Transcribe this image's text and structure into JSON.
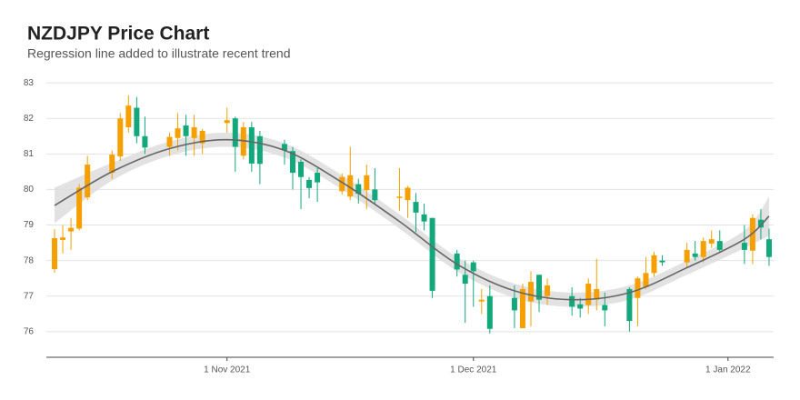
{
  "chart_data": {
    "type": "candlestick",
    "title": "NZDJPY Price Chart",
    "subtitle": "Regression line added to illustrate recent trend",
    "up_color": "#f5a000",
    "down_color": "#12a87b",
    "grid": true,
    "x": [
      "2021-10-11",
      "2021-10-12",
      "2021-10-13",
      "2021-10-14",
      "2021-10-15",
      "2021-10-18",
      "2021-10-19",
      "2021-10-20",
      "2021-10-21",
      "2021-10-22",
      "2021-10-25",
      "2021-10-26",
      "2021-10-27",
      "2021-10-28",
      "2021-10-29",
      "2021-11-01",
      "2021-11-02",
      "2021-11-03",
      "2021-11-04",
      "2021-11-05",
      "2021-11-08",
      "2021-11-09",
      "2021-11-10",
      "2021-11-11",
      "2021-11-12",
      "2021-11-15",
      "2021-11-16",
      "2021-11-17",
      "2021-11-18",
      "2021-11-19",
      "2021-11-22",
      "2021-11-23",
      "2021-11-24",
      "2021-11-25",
      "2021-11-26",
      "2021-11-29",
      "2021-11-30",
      "2021-12-01",
      "2021-12-02",
      "2021-12-03",
      "2021-12-06",
      "2021-12-07",
      "2021-12-08",
      "2021-12-09",
      "2021-12-10",
      "2021-12-13",
      "2021-12-14",
      "2021-12-15",
      "2021-12-16",
      "2021-12-17",
      "2021-12-20",
      "2021-12-21",
      "2021-12-22",
      "2021-12-23",
      "2021-12-24",
      "2021-12-27",
      "2021-12-28",
      "2021-12-29",
      "2021-12-30",
      "2021-12-31",
      "2022-01-03",
      "2022-01-04",
      "2022-01-05",
      "2022-01-06"
    ],
    "open": [
      77.76,
      78.58,
      78.82,
      78.9,
      79.78,
      80.47,
      80.93,
      81.75,
      82.3,
      81.5,
      81.2,
      81.45,
      81.8,
      81.45,
      81.3,
      81.87,
      82.0,
      80.95,
      81.75,
      81.5,
      81.28,
      81.08,
      80.78,
      80.27,
      80.47,
      79.95,
      79.8,
      80.15,
      79.98,
      80.0,
      79.77,
      79.7,
      79.65,
      79.3,
      79.2,
      78.2,
      77.6,
      77.95,
      76.85,
      77.0,
      76.95,
      76.1,
      76.85,
      77.6,
      77.0,
      77.0,
      76.77,
      76.75,
      76.9,
      76.75,
      77.2,
      76.95,
      77.25,
      77.65,
      78.0,
      77.95,
      78.2,
      78.1,
      78.48,
      78.55,
      78.5,
      78.28,
      79.15,
      78.6
    ],
    "high": [
      78.88,
      79.0,
      79.2,
      80.15,
      80.95,
      81.1,
      82.15,
      82.65,
      82.6,
      82.05,
      81.6,
      82.15,
      82.1,
      82.1,
      81.7,
      82.3,
      82.05,
      81.9,
      81.9,
      81.65,
      81.4,
      81.2,
      80.85,
      80.35,
      80.6,
      80.45,
      81.2,
      80.3,
      80.7,
      80.6,
      80.6,
      80.1,
      79.9,
      79.6,
      79.2,
      78.3,
      78.0,
      78.0,
      77.2,
      77.3,
      77.3,
      77.35,
      77.7,
      77.6,
      77.5,
      77.25,
      76.95,
      77.5,
      78.05,
      77.1,
      77.25,
      77.55,
      78.1,
      78.25,
      78.15,
      78.5,
      78.55,
      78.65,
      78.85,
      78.85,
      79.0,
      79.3,
      79.45,
      78.9
    ],
    "low": [
      77.66,
      78.2,
      78.3,
      78.85,
      79.7,
      80.3,
      80.8,
      81.6,
      81.3,
      81.0,
      80.95,
      81.1,
      80.95,
      80.95,
      81.0,
      81.6,
      80.5,
      80.85,
      80.5,
      80.15,
      80.7,
      80.0,
      79.45,
      79.75,
      79.65,
      79.85,
      79.7,
      79.6,
      79.45,
      79.6,
      79.4,
      79.2,
      78.8,
      78.85,
      76.95,
      77.55,
      76.25,
      76.7,
      76.5,
      75.95,
      76.1,
      76.1,
      76.15,
      76.55,
      76.75,
      76.45,
      76.4,
      76.5,
      76.6,
      76.15,
      76.0,
      76.15,
      77.2,
      77.55,
      77.85,
      77.8,
      78.0,
      77.95,
      78.35,
      78.25,
      77.9,
      77.9,
      78.6,
      77.85
    ],
    "close": [
      78.63,
      78.65,
      78.92,
      80.05,
      80.7,
      80.98,
      82.0,
      82.36,
      81.5,
      81.18,
      81.48,
      81.72,
      81.5,
      81.75,
      81.65,
      81.95,
      81.2,
      81.75,
      80.73,
      80.72,
      81.1,
      80.47,
      80.35,
      80.04,
      80.2,
      80.35,
      80.4,
      79.88,
      80.4,
      79.7,
      79.8,
      80.05,
      79.35,
      79.1,
      77.15,
      77.75,
      77.35,
      77.7,
      76.9,
      76.08,
      76.6,
      77.2,
      77.4,
      76.9,
      77.3,
      76.7,
      76.65,
      77.35,
      77.2,
      76.6,
      76.3,
      77.5,
      77.65,
      78.15,
      77.95,
      78.3,
      78.1,
      78.55,
      78.6,
      78.3,
      78.3,
      79.2,
      78.93,
      78.1
    ],
    "trend": {
      "color": "#666666",
      "band_color": "#dddddd",
      "x": [
        "2021-10-11",
        "2021-10-18",
        "2021-10-25",
        "2021-11-01",
        "2021-11-08",
        "2021-11-15",
        "2021-11-22",
        "2021-11-29",
        "2021-12-06",
        "2021-12-13",
        "2021-12-20",
        "2021-12-27",
        "2022-01-03",
        "2022-01-06"
      ],
      "values": [
        79.55,
        80.5,
        81.15,
        81.4,
        81.1,
        80.2,
        79.1,
        77.9,
        77.15,
        76.9,
        77.1,
        77.8,
        78.6,
        79.25
      ],
      "lower": [
        79.05,
        80.25,
        80.95,
        81.2,
        80.9,
        80.0,
        78.9,
        77.7,
        76.95,
        76.7,
        76.9,
        77.6,
        78.35,
        78.7
      ],
      "upper": [
        80.05,
        80.75,
        81.35,
        81.6,
        81.3,
        80.4,
        79.3,
        78.1,
        77.35,
        77.1,
        77.3,
        78.0,
        78.85,
        79.8
      ]
    },
    "xlim": [
      "2021-10-10",
      "2022-01-07"
    ],
    "xticks": [
      {
        "value": "2021-11-01",
        "label": "1 Nov 2021"
      },
      {
        "value": "2021-12-01",
        "label": "1 Dec 2021"
      },
      {
        "value": "2022-01-01",
        "label": "1 Jan 2022"
      }
    ],
    "ylim": [
      75.28,
      83.08
    ],
    "yticks": [
      76,
      77,
      78,
      79,
      80,
      81,
      82,
      83
    ]
  }
}
